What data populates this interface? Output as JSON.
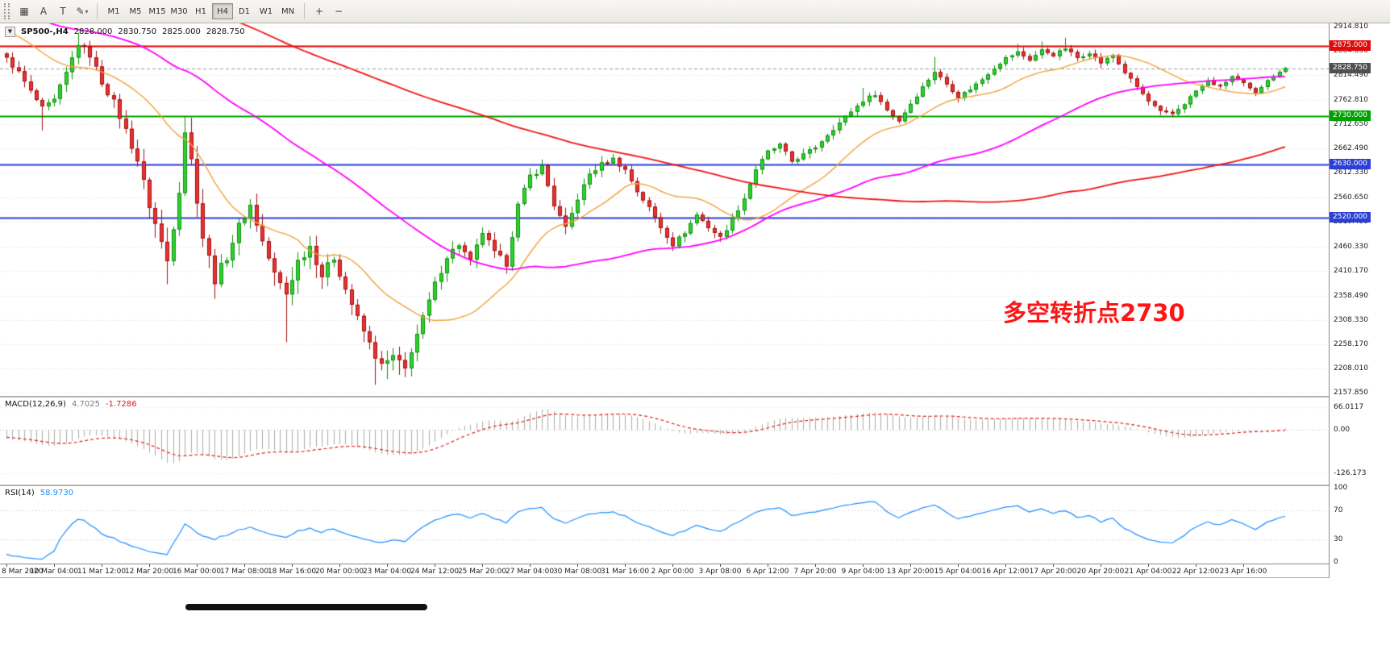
{
  "toolbar": {
    "buttons": {
      "chart_grid": "▦",
      "text_a": "A",
      "text_t": "T",
      "draw": "✎",
      "caret": "▾",
      "zoom_in": "+",
      "zoom_out": "−"
    },
    "timeframes": [
      "M1",
      "M5",
      "M15",
      "M30",
      "H1",
      "H4",
      "D1",
      "W1",
      "MN"
    ],
    "active_timeframe": "H4"
  },
  "chart_header": {
    "symbol_tf": "SP500-,H4",
    "open": "2828.000",
    "high": "2830.750",
    "low": "2825.000",
    "close": "2828.750"
  },
  "annotation": {
    "text": "多空转折点2730",
    "color": "#fe1616"
  },
  "price_axis": {
    "ticks": [
      "2914.810",
      "2864.650",
      "2814.490",
      "2762.810",
      "2712.650",
      "2662.490",
      "2612.330",
      "2560.650",
      "2510.490",
      "2460.330",
      "2410.170",
      "2358.490",
      "2308.330",
      "2258.170",
      "2208.010",
      "2157.850"
    ],
    "tags": [
      {
        "value": 2875.0,
        "label": "2875.000",
        "color": "#dd0b0b"
      },
      {
        "value": 2828.75,
        "label": "2828.750",
        "color": "#4f4f4f"
      },
      {
        "value": 2730.0,
        "label": "2730.000",
        "color": "#00a000"
      },
      {
        "value": 2630.0,
        "label": "2630.000",
        "color": "#2b3fd4"
      },
      {
        "value": 2520.0,
        "label": "2520.000",
        "color": "#2b3fd4"
      }
    ]
  },
  "macd_panel": {
    "label": "MACD(12,26,9)",
    "value_main": "4.7025",
    "value_signal": "-1.7286",
    "axis": [
      "66.0117",
      "0.00",
      "-126.173"
    ]
  },
  "rsi_panel": {
    "label": "RSI(14)",
    "value": "58.9730",
    "axis": [
      "100",
      "70",
      "30",
      "0"
    ]
  },
  "chart_data": {
    "type": "candlestick",
    "symbol": "SP500-",
    "timeframe": "H4",
    "n_bars": 216,
    "pre_bars": 160,
    "y_top": 2914.81,
    "y_bottom": 2157.85,
    "colors": {
      "up_fill": "#2fd12f",
      "up_border": "#0f8f0f",
      "down_fill": "#e83232",
      "down_border": "#a01010"
    },
    "hlines": [
      {
        "price": 2875.0,
        "color": "#e00000",
        "width": 2,
        "dash": []
      },
      {
        "price": 2730.0,
        "color": "#00a000",
        "width": 2,
        "dash": []
      },
      {
        "price": 2630.0,
        "color": "#2b3fd4",
        "width": 2,
        "dash": []
      },
      {
        "price": 2520.0,
        "color": "#2b3fd4",
        "width": 2,
        "dash": []
      },
      {
        "price": 2828.75,
        "color": "#9a9a9a",
        "width": 1,
        "dash": [
          4,
          3
        ]
      }
    ],
    "ma": [
      {
        "period": 20,
        "color": "#f2a33c",
        "width": 1.4
      },
      {
        "period": 60,
        "color": "#ff00ff",
        "width": 1.8
      },
      {
        "period": 150,
        "color": "#f01414",
        "width": 1.8
      }
    ],
    "close_anchors": [
      [
        0,
        2848
      ],
      [
        2,
        2820
      ],
      [
        4,
        2780
      ],
      [
        6,
        2745
      ],
      [
        8,
        2762
      ],
      [
        10,
        2818
      ],
      [
        12,
        2880
      ],
      [
        14,
        2856
      ],
      [
        16,
        2800
      ],
      [
        18,
        2758
      ],
      [
        20,
        2700
      ],
      [
        22,
        2638
      ],
      [
        24,
        2545
      ],
      [
        26,
        2468
      ],
      [
        27,
        2430
      ],
      [
        29,
        2580
      ],
      [
        30,
        2700
      ],
      [
        31,
        2638
      ],
      [
        33,
        2480
      ],
      [
        35,
        2392
      ],
      [
        37,
        2440
      ],
      [
        39,
        2502
      ],
      [
        41,
        2545
      ],
      [
        43,
        2470
      ],
      [
        45,
        2402
      ],
      [
        47,
        2362
      ],
      [
        49,
        2430
      ],
      [
        51,
        2462
      ],
      [
        53,
        2400
      ],
      [
        55,
        2438
      ],
      [
        57,
        2372
      ],
      [
        59,
        2310
      ],
      [
        61,
        2258
      ],
      [
        63,
        2212
      ],
      [
        65,
        2232
      ],
      [
        67,
        2206
      ],
      [
        68,
        2246
      ],
      [
        70,
        2312
      ],
      [
        72,
        2382
      ],
      [
        74,
        2440
      ],
      [
        76,
        2465
      ],
      [
        78,
        2428
      ],
      [
        80,
        2490
      ],
      [
        82,
        2446
      ],
      [
        84,
        2425
      ],
      [
        86,
        2545
      ],
      [
        88,
        2606
      ],
      [
        90,
        2625
      ],
      [
        92,
        2546
      ],
      [
        94,
        2496
      ],
      [
        96,
        2560
      ],
      [
        98,
        2610
      ],
      [
        100,
        2630
      ],
      [
        102,
        2641
      ],
      [
        104,
        2618
      ],
      [
        106,
        2574
      ],
      [
        108,
        2540
      ],
      [
        110,
        2500
      ],
      [
        112,
        2464
      ],
      [
        114,
        2490
      ],
      [
        116,
        2526
      ],
      [
        118,
        2500
      ],
      [
        120,
        2478
      ],
      [
        122,
        2516
      ],
      [
        124,
        2560
      ],
      [
        126,
        2620
      ],
      [
        128,
        2656
      ],
      [
        130,
        2670
      ],
      [
        132,
        2636
      ],
      [
        134,
        2650
      ],
      [
        136,
        2666
      ],
      [
        138,
        2692
      ],
      [
        140,
        2716
      ],
      [
        142,
        2740
      ],
      [
        144,
        2762
      ],
      [
        146,
        2776
      ],
      [
        148,
        2742
      ],
      [
        150,
        2720
      ],
      [
        152,
        2756
      ],
      [
        154,
        2790
      ],
      [
        156,
        2822
      ],
      [
        158,
        2796
      ],
      [
        160,
        2770
      ],
      [
        162,
        2786
      ],
      [
        164,
        2806
      ],
      [
        166,
        2830
      ],
      [
        168,
        2850
      ],
      [
        170,
        2862
      ],
      [
        172,
        2846
      ],
      [
        174,
        2866
      ],
      [
        176,
        2856
      ],
      [
        178,
        2870
      ],
      [
        180,
        2850
      ],
      [
        182,
        2862
      ],
      [
        184,
        2840
      ],
      [
        186,
        2856
      ],
      [
        188,
        2820
      ],
      [
        190,
        2790
      ],
      [
        192,
        2760
      ],
      [
        194,
        2738
      ],
      [
        196,
        2734
      ],
      [
        198,
        2756
      ],
      [
        200,
        2782
      ],
      [
        202,
        2802
      ],
      [
        204,
        2790
      ],
      [
        206,
        2812
      ],
      [
        208,
        2796
      ],
      [
        210,
        2776
      ],
      [
        212,
        2806
      ],
      [
        214,
        2820
      ],
      [
        215,
        2828.75
      ]
    ],
    "pre_history_anchors": [
      [
        -160,
        3268
      ],
      [
        -150,
        3300
      ],
      [
        -140,
        3322
      ],
      [
        -130,
        3352
      ],
      [
        -120,
        3386
      ],
      [
        -112,
        3340
      ],
      [
        -105,
        3258
      ],
      [
        -98,
        3160
      ],
      [
        -92,
        3040
      ],
      [
        -86,
        2920
      ],
      [
        -80,
        2962
      ],
      [
        -74,
        3032
      ],
      [
        -68,
        3092
      ],
      [
        -62,
        3122
      ],
      [
        -56,
        3058
      ],
      [
        -50,
        3000
      ],
      [
        -44,
        2958
      ],
      [
        -38,
        2912
      ],
      [
        -32,
        2952
      ],
      [
        -26,
        2990
      ],
      [
        -20,
        2962
      ],
      [
        -14,
        2930
      ],
      [
        -8,
        2900
      ],
      [
        -2,
        2870
      ]
    ],
    "volatility_anchors": [
      [
        0,
        16
      ],
      [
        10,
        20
      ],
      [
        20,
        28
      ],
      [
        26,
        40
      ],
      [
        30,
        38
      ],
      [
        34,
        40
      ],
      [
        40,
        30
      ],
      [
        47,
        38
      ],
      [
        56,
        30
      ],
      [
        62,
        34
      ],
      [
        67,
        26
      ],
      [
        75,
        22
      ],
      [
        85,
        24
      ],
      [
        95,
        20
      ],
      [
        105,
        16
      ],
      [
        115,
        15
      ],
      [
        125,
        14
      ],
      [
        135,
        13
      ],
      [
        145,
        13
      ],
      [
        155,
        12
      ],
      [
        165,
        11
      ],
      [
        175,
        11
      ],
      [
        185,
        12
      ],
      [
        195,
        12
      ],
      [
        205,
        10
      ],
      [
        215,
        8
      ]
    ],
    "wick_events": [
      {
        "bar": 6,
        "low": 2700
      },
      {
        "bar": 12,
        "high": 2902
      },
      {
        "bar": 27,
        "low": 2382
      },
      {
        "bar": 30,
        "high": 2730
      },
      {
        "bar": 35,
        "low": 2352
      },
      {
        "bar": 47,
        "low": 2262
      },
      {
        "bar": 62,
        "low": 2174
      },
      {
        "bar": 64,
        "low": 2186
      },
      {
        "bar": 66,
        "low": 2195
      },
      {
        "bar": 144,
        "high": 2788
      },
      {
        "bar": 156,
        "high": 2852
      },
      {
        "bar": 170,
        "high": 2879
      },
      {
        "bar": 174,
        "high": 2884
      },
      {
        "bar": 178,
        "high": 2892
      }
    ],
    "x_label_step": 8,
    "x_labels": [
      "8 Mar 2020",
      "10 Mar 04:00",
      "11 Mar 12:00",
      "12 Mar 20:00",
      "16 Mar 00:00",
      "17 Mar 08:00",
      "18 Mar 16:00",
      "20 Mar 00:00",
      "23 Mar 04:00",
      "24 Mar 12:00",
      "25 Mar 20:00",
      "27 Mar 04:00",
      "30 Mar 08:00",
      "31 Mar 16:00",
      "2 Apr 00:00",
      "3 Apr 08:00",
      "6 Apr 12:00",
      "7 Apr 20:00",
      "9 Apr 04:00",
      "13 Apr 20:00",
      "15 Apr 04:00",
      "16 Apr 12:00",
      "17 Apr 20:00",
      "20 Apr 20:00",
      "21 Apr 04:00",
      "22 Apr 12:00",
      "23 Apr 16:00"
    ],
    "macd": {
      "range": [
        -160,
        95
      ],
      "hist_color": "#ababab",
      "signal_color": "#e02020"
    },
    "rsi": {
      "range": [
        -2,
        102
      ],
      "line_color": "#1e90ff",
      "levels": [
        70,
        30
      ]
    }
  }
}
